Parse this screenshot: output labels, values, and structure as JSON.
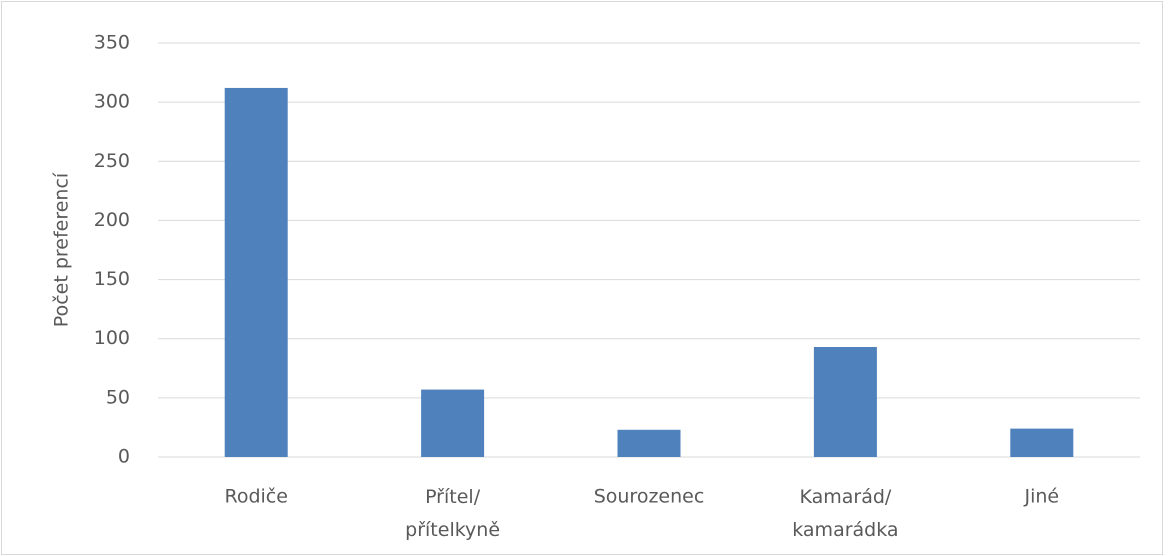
{
  "chart_data": {
    "type": "bar",
    "y_label": "Počet preferencí",
    "categories": [
      "Rodiče",
      "Přítel/ přítelkyně",
      "Sourozenec",
      "Kamarád/ kamarádka",
      "Jiné"
    ],
    "values": [
      312,
      57,
      23,
      93,
      24
    ],
    "color": "#4f81bd",
    "ylim": [
      0,
      350
    ],
    "yticks": [
      0,
      50,
      100,
      150,
      200,
      250,
      300,
      350
    ],
    "grid": true
  }
}
